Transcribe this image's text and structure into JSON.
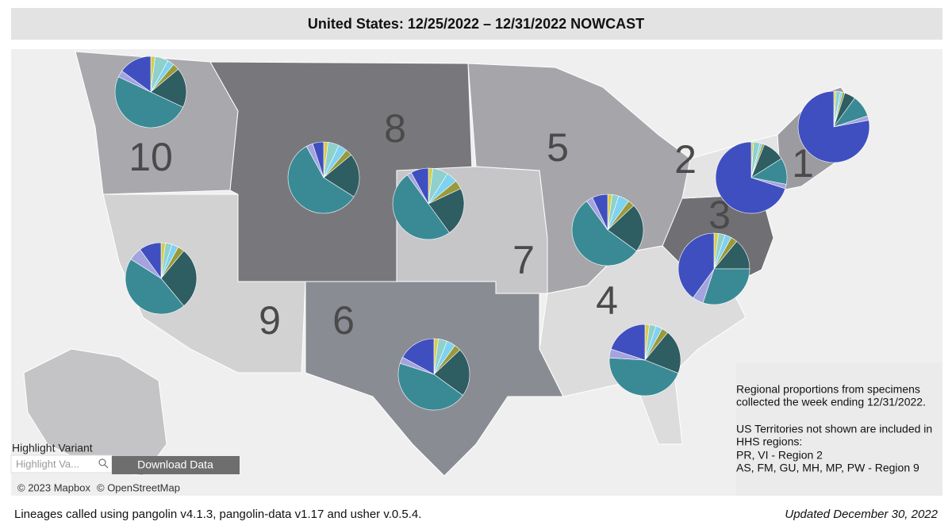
{
  "header": {
    "title": "United States: 12/25/2022 – 12/31/2022 NOWCAST"
  },
  "map": {
    "slice_colors": [
      "#d6cc4e",
      "#8fd0cc",
      "#7fd2f0",
      "#9a9a3c",
      "#2e5d62",
      "#3a8a96",
      "#a3a4de",
      "#3f4fbf"
    ],
    "regions": [
      {
        "label": "10",
        "values": [
          2,
          6,
          3,
          3,
          18,
          50,
          3,
          15
        ]
      },
      {
        "label": "8",
        "values": [
          2,
          5,
          4,
          3,
          20,
          58,
          3,
          5
        ]
      },
      {
        "label": "7",
        "values": [
          2,
          7,
          5,
          4,
          22,
          50,
          2,
          8
        ]
      },
      {
        "label": "5",
        "values": [
          2,
          3,
          5,
          3,
          22,
          55,
          3,
          7
        ]
      },
      {
        "label": "2",
        "values": [
          1,
          3,
          1,
          1,
          10,
          12,
          2,
          70
        ]
      },
      {
        "label": "1",
        "values": [
          1,
          2,
          1,
          1,
          5,
          10,
          2,
          78
        ]
      },
      {
        "label": "3",
        "values": [
          2,
          3,
          3,
          3,
          14,
          30,
          5,
          40
        ]
      },
      {
        "label": "9",
        "values": [
          2,
          3,
          3,
          3,
          28,
          45,
          6,
          10
        ]
      },
      {
        "label": "6",
        "values": [
          2,
          4,
          4,
          3,
          22,
          45,
          3,
          17
        ]
      },
      {
        "label": "4",
        "values": [
          2,
          3,
          3,
          3,
          20,
          45,
          4,
          20
        ]
      }
    ],
    "attribution": [
      "© 2023 Mapbox",
      "© OpenStreetMap"
    ]
  },
  "controls": {
    "highlight_label": "Highlight Variant",
    "search_placeholder": "Highlight Va...",
    "download_button": "Download Data"
  },
  "note": {
    "lines": [
      "Regional proportions from specimens",
      "collected the week ending 12/31/2022.",
      "US Territories not shown are included in",
      "HHS regions:",
      "PR, VI - Region 2",
      "AS, FM, GU, MH, MP, PW - Region 9"
    ]
  },
  "footer": {
    "source": "Lineages called using pangolin v4.1.3, pangolin-data v1.17 and usher v.0.5.4.",
    "updated": "Updated December 30, 2022"
  }
}
